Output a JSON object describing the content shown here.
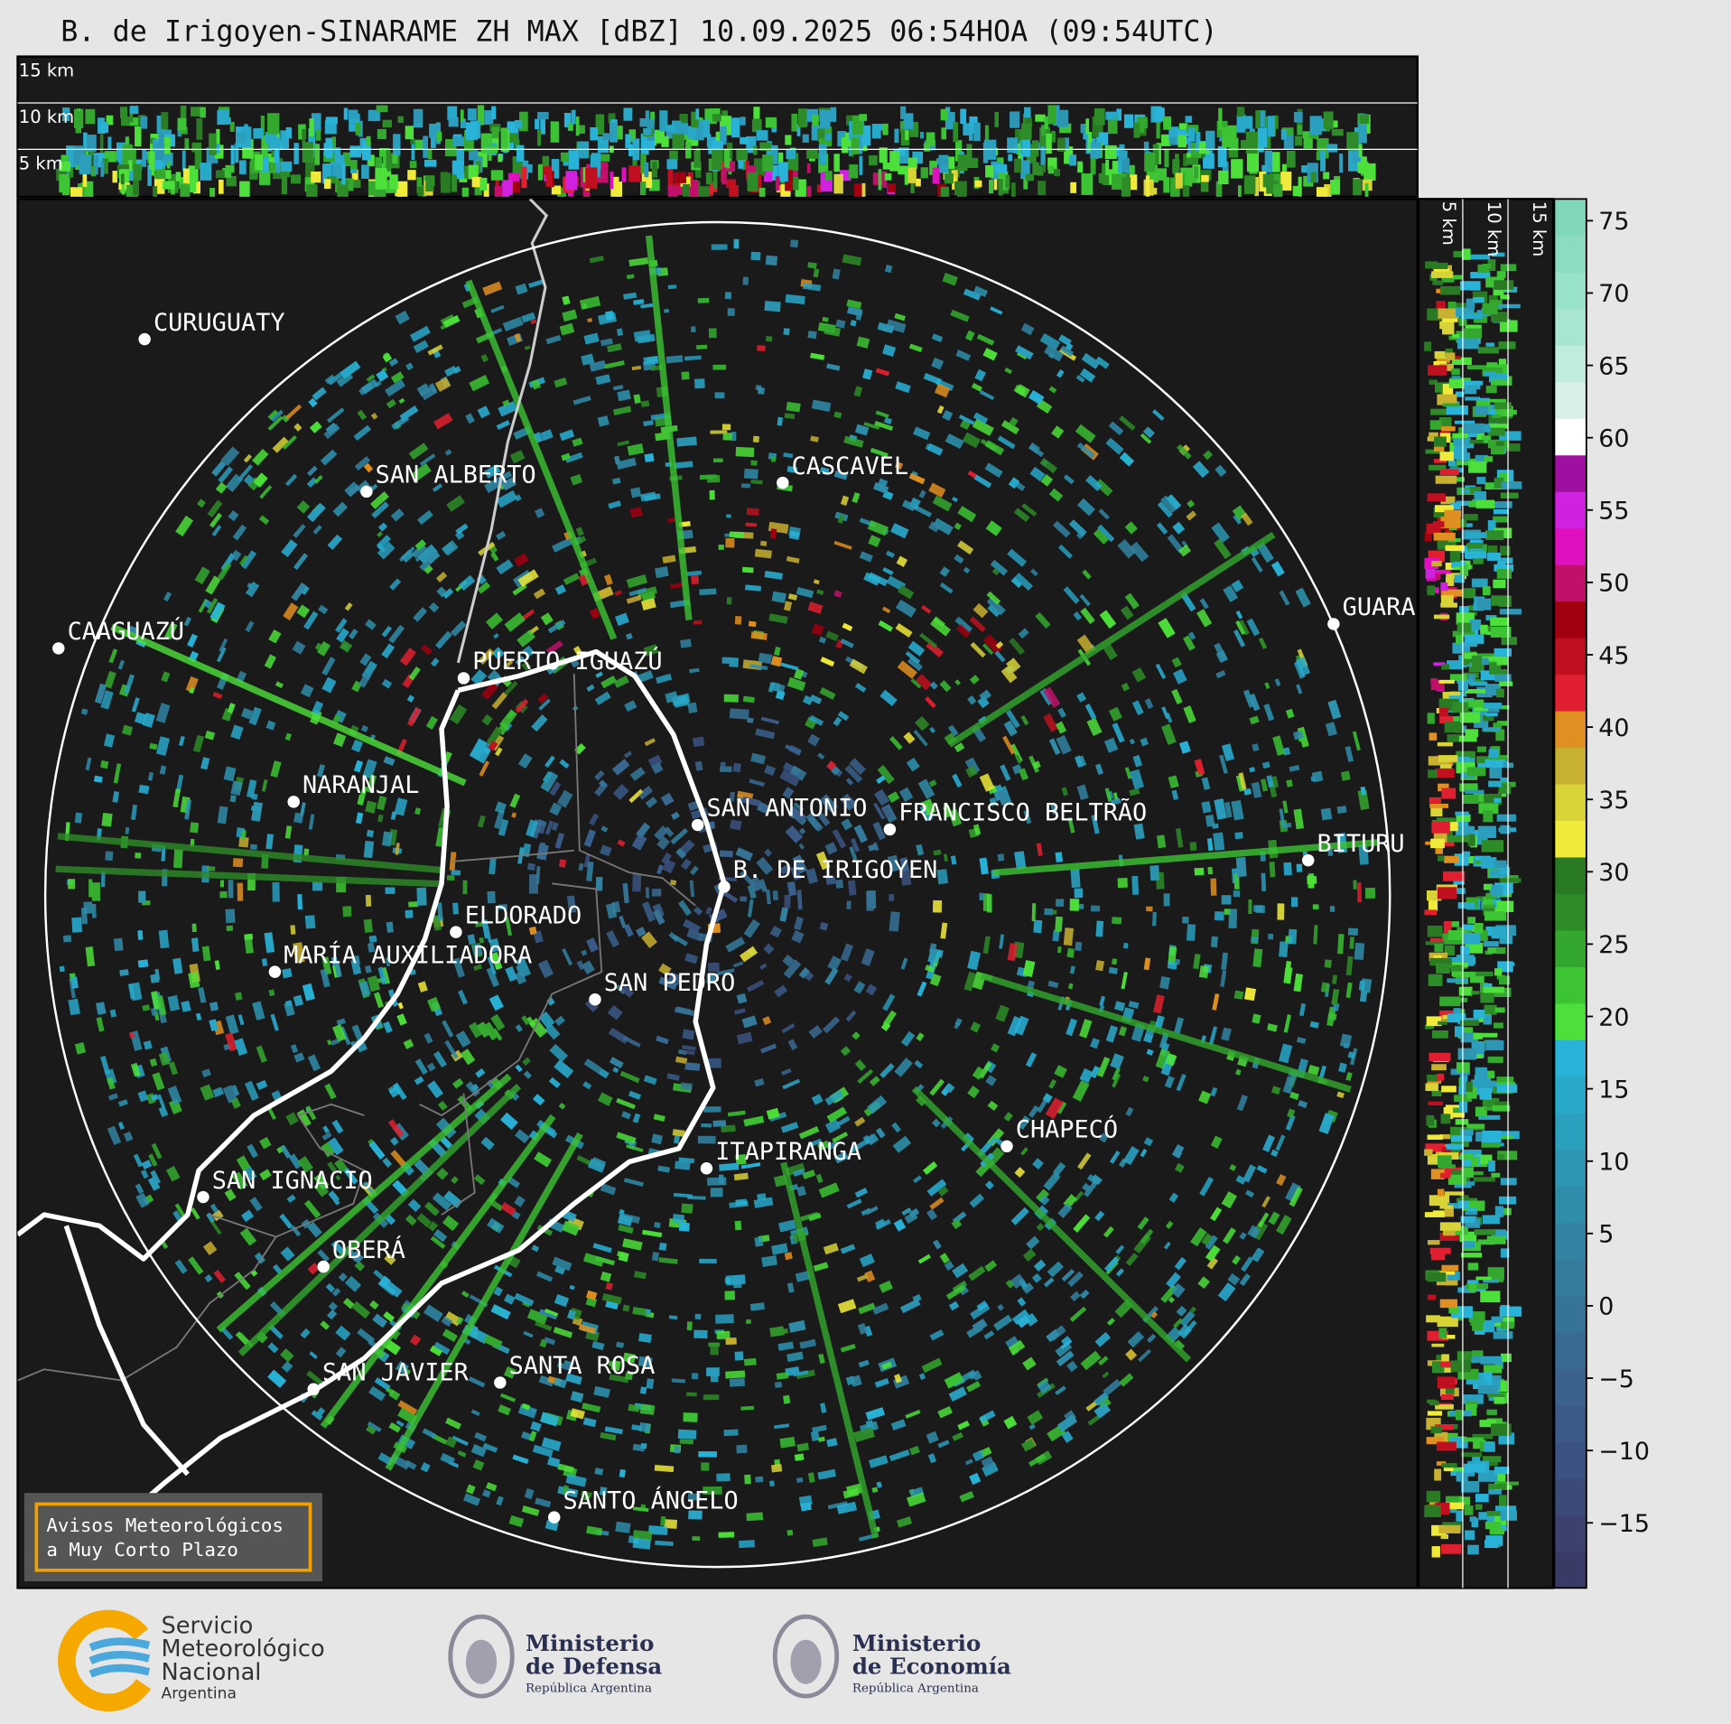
{
  "header": {
    "title": "B. de Irigoyen-SINARAME ZH MAX [dBZ] 10.09.2025 06:54HOA (09:54UTC)"
  },
  "profile_panel": {
    "labels": [
      "15 km",
      "10 km",
      "5 km"
    ]
  },
  "side_panel": {
    "labels": [
      "5 km",
      "10 km",
      "15 km"
    ]
  },
  "colorbar": {
    "lim": [
      -19.5,
      76.5
    ],
    "ticks": [
      {
        "value": -15,
        "label": "−15"
      },
      {
        "value": -10,
        "label": "−10"
      },
      {
        "value": -5,
        "label": "−5"
      },
      0,
      5,
      10,
      15,
      20,
      25,
      30,
      35,
      40,
      45,
      50,
      55,
      60,
      65,
      70,
      75
    ],
    "colors": [
      "#3a3a66",
      "#3b426f",
      "#3c4a78",
      "#3c5280",
      "#3b5a87",
      "#3a628d",
      "#396a92",
      "#377397",
      "#357b9c",
      "#3384a2",
      "#308daa",
      "#2d96b3",
      "#2a9fbe",
      "#28a9ca",
      "#29b3d8",
      "#4ee03a",
      "#3cc434",
      "#34a82e",
      "#2e8c28",
      "#2a7a24",
      "#f0ea3a",
      "#d8d438",
      "#c8b030",
      "#e09020",
      "#e02030",
      "#c01020",
      "#a00010",
      "#c0106a",
      "#e010c0",
      "#d020e0",
      "#a010a0",
      "#ffffff",
      "#d8f0e8",
      "#c0ecdc",
      "#a8e6d0",
      "#98e2c8",
      "#8cdcc0",
      "#80d8b8"
    ]
  },
  "map": {
    "cities": [
      "CURUGUATY",
      "SAN ALBERTO",
      "CASCAVEL",
      "CAAGUAZÚ",
      "GUARA",
      "PUERTO IGUAZÚ",
      "NARANJAL",
      "SAN ANTONIO",
      "FRANCISCO BELTRÃO",
      "BITURU",
      "B. DE IRIGOYEN",
      "ELDORADO",
      "MARÍA AUXILIADORA",
      "SAN PEDRO",
      "CHAPECÓ",
      "ITAPIRANGA",
      "SAN IGNACIO",
      "OBERÁ",
      "SAN JAVIER",
      "SANTA ROSA",
      "SANTO ÁNGELO"
    ]
  },
  "notice": {
    "lines": [
      "Avisos Meteorológicos",
      "a Muy Corto Plazo"
    ]
  },
  "logos": [
    {
      "lines": [
        "Servicio",
        "Meteorológico",
        "Nacional",
        "Argentina"
      ]
    },
    {
      "lines": [
        "Ministerio",
        "de Defensa",
        "República Argentina"
      ]
    },
    {
      "lines": [
        "Ministerio",
        "de Economía",
        "República Argentina"
      ]
    }
  ]
}
